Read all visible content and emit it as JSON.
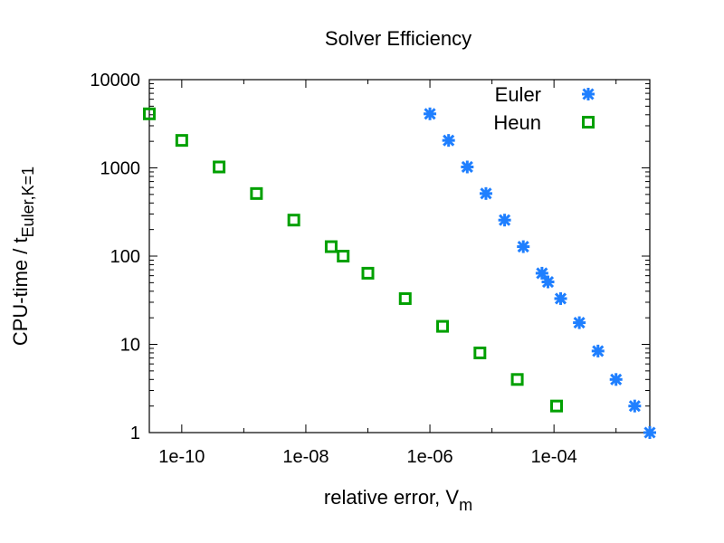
{
  "chart_data": {
    "type": "scatter",
    "title": "Solver Efficiency",
    "xlabel": "relative error, V",
    "xlabel_sub": "m",
    "ylabel": "CPU-time / t",
    "ylabel_sub": "Euler,K=1",
    "x_scale": "log",
    "y_scale": "log",
    "xlim": [
      3e-11,
      0.0035
    ],
    "ylim": [
      1,
      10000
    ],
    "x_ticks": [
      {
        "value": 1e-10,
        "label": "1e-10"
      },
      {
        "value": 1e-08,
        "label": "1e-08"
      },
      {
        "value": 1e-06,
        "label": "1e-06"
      },
      {
        "value": 0.0001,
        "label": "1e-04"
      }
    ],
    "y_ticks": [
      {
        "value": 1,
        "label": "1"
      },
      {
        "value": 10,
        "label": "10"
      },
      {
        "value": 100,
        "label": "100"
      },
      {
        "value": 1000,
        "label": "1000"
      },
      {
        "value": 10000,
        "label": "10000"
      }
    ],
    "grid": false,
    "legend_position": "top-right",
    "series": [
      {
        "name": "Euler",
        "color": "#1f7fff",
        "marker": "asterisk",
        "points": [
          {
            "x": 1e-06,
            "y": 4096
          },
          {
            "x": 2e-06,
            "y": 2048
          },
          {
            "x": 4e-06,
            "y": 1024
          },
          {
            "x": 8e-06,
            "y": 512
          },
          {
            "x": 1.6e-05,
            "y": 256
          },
          {
            "x": 3.2e-05,
            "y": 128
          },
          {
            "x": 6.4e-05,
            "y": 64
          },
          {
            "x": 8e-05,
            "y": 51
          },
          {
            "x": 0.000128,
            "y": 33
          },
          {
            "x": 0.000256,
            "y": 17.6
          },
          {
            "x": 0.000512,
            "y": 8.4
          },
          {
            "x": 0.001,
            "y": 4.0
          },
          {
            "x": 0.002,
            "y": 2.0
          },
          {
            "x": 0.0035,
            "y": 1.0
          }
        ]
      },
      {
        "name": "Heun",
        "color": "#00a000",
        "marker": "open-square",
        "points": [
          {
            "x": 3e-11,
            "y": 4096
          },
          {
            "x": 1e-10,
            "y": 2048
          },
          {
            "x": 4e-10,
            "y": 1024
          },
          {
            "x": 1.6e-09,
            "y": 512
          },
          {
            "x": 6.4e-09,
            "y": 256
          },
          {
            "x": 2.56e-08,
            "y": 128
          },
          {
            "x": 4e-08,
            "y": 100
          },
          {
            "x": 1e-07,
            "y": 64
          },
          {
            "x": 4e-07,
            "y": 33
          },
          {
            "x": 1.6e-06,
            "y": 16
          },
          {
            "x": 6.4e-06,
            "y": 8
          },
          {
            "x": 2.56e-05,
            "y": 4
          },
          {
            "x": 0.00011,
            "y": 2
          }
        ]
      }
    ]
  }
}
